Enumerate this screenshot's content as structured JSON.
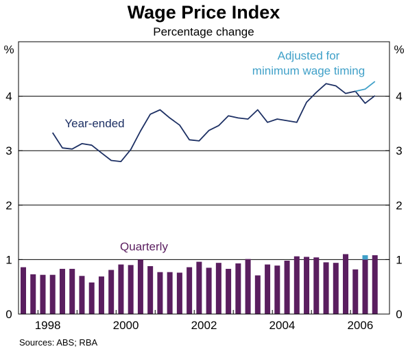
{
  "chart_data": {
    "type": "bar",
    "title": "Wage Price Index",
    "subtitle": "Percentage change",
    "y_unit_left": "%",
    "y_unit_right": "%",
    "ylim": [
      0,
      5
    ],
    "y_ticks": [
      "0",
      "1",
      "2",
      "3",
      "4"
    ],
    "x_tick_labels": [
      "1998",
      "2000",
      "2002",
      "2004",
      "2006"
    ],
    "x_domain": [
      1997.5,
      2006.75
    ],
    "source": "Sources: ABS; RBA",
    "colors": {
      "quarterly": "#5a1e5f",
      "year_ended": "#1c2f63",
      "adjusted": "#3fa0c8"
    },
    "series": [
      {
        "name": "Quarterly",
        "kind": "bar",
        "x": [
          1997.5,
          1997.75,
          1998.0,
          1998.25,
          1998.5,
          1998.75,
          1999.0,
          1999.25,
          1999.5,
          1999.75,
          2000.0,
          2000.25,
          2000.5,
          2000.75,
          2001.0,
          2001.25,
          2001.5,
          2001.75,
          2002.0,
          2002.25,
          2002.5,
          2002.75,
          2003.0,
          2003.25,
          2003.5,
          2003.75,
          2004.0,
          2004.25,
          2004.5,
          2004.75,
          2005.0,
          2005.25,
          2005.5,
          2005.75,
          2006.0,
          2006.25,
          2006.5
        ],
        "values": [
          0.86,
          0.73,
          0.72,
          0.72,
          0.83,
          0.83,
          0.7,
          0.58,
          0.69,
          0.81,
          0.91,
          0.9,
          1.0,
          0.88,
          0.77,
          0.77,
          0.76,
          0.86,
          0.96,
          0.85,
          0.94,
          0.83,
          0.93,
          1.01,
          0.71,
          0.91,
          0.89,
          0.98,
          1.06,
          1.05,
          1.04,
          0.95,
          0.94,
          1.1,
          0.82,
          1.0,
          1.08
        ]
      },
      {
        "name": "Year-ended",
        "kind": "line",
        "x": [
          1998.25,
          1998.5,
          1998.75,
          1999.0,
          1999.25,
          1999.5,
          1999.75,
          2000.0,
          2000.25,
          2000.5,
          2000.75,
          2001.0,
          2001.25,
          2001.5,
          2001.75,
          2002.0,
          2002.25,
          2002.5,
          2002.75,
          2003.0,
          2003.25,
          2003.5,
          2003.75,
          2004.0,
          2004.25,
          2004.5,
          2004.75,
          2005.0,
          2005.25,
          2005.5,
          2005.75,
          2006.0,
          2006.25,
          2006.5
        ],
        "values": [
          3.33,
          3.05,
          3.03,
          3.13,
          3.1,
          2.96,
          2.82,
          2.8,
          3.02,
          3.36,
          3.67,
          3.75,
          3.6,
          3.47,
          3.2,
          3.18,
          3.37,
          3.46,
          3.64,
          3.6,
          3.58,
          3.75,
          3.52,
          3.58,
          3.55,
          3.52,
          3.89,
          4.07,
          4.23,
          4.19,
          4.05,
          4.09,
          3.87,
          4.01
        ]
      },
      {
        "name": "Adjusted for minimum wage timing",
        "label_lines": [
          "Adjusted for",
          "minimum wage timing"
        ],
        "kind": "line",
        "x": [
          2006.0,
          2006.25,
          2006.5
        ],
        "values": [
          4.09,
          4.13,
          4.27
        ]
      },
      {
        "name": "Adjusted for minimum wage timing",
        "kind": "bar",
        "x": [
          2006.25
        ],
        "values": [
          1.08
        ]
      }
    ]
  }
}
